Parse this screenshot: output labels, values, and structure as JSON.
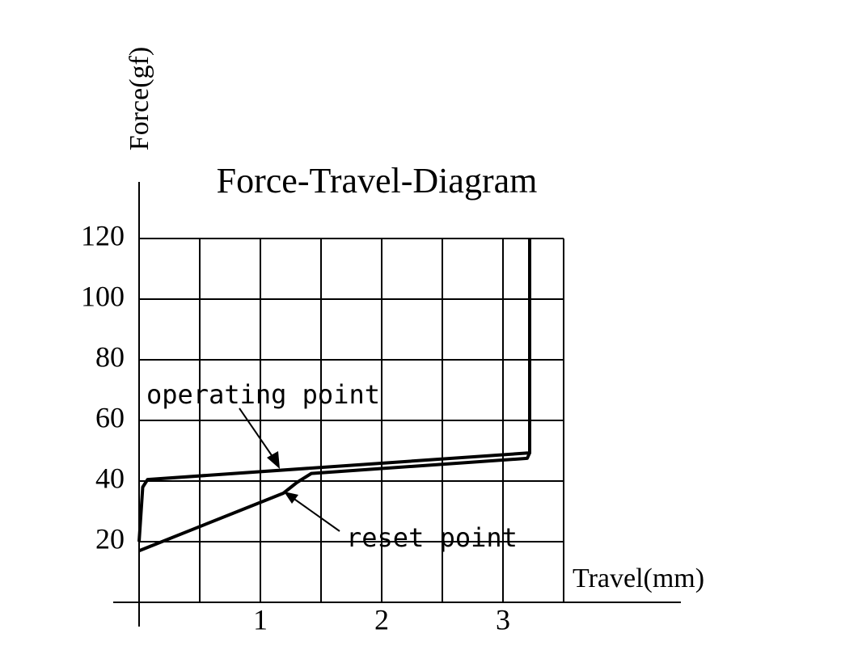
{
  "chart_data": {
    "type": "line",
    "title": "Force-Travel-Diagram",
    "x_label": "Travel(mm)",
    "y_label": "Force(gf)",
    "annotations": [
      "operating point",
      "reset point"
    ],
    "series": [
      {
        "color": "#000000",
        "x": [
          0,
          0.03,
          0.07,
          3.22,
          3.22
        ],
        "values": [
          20,
          38,
          40.5,
          49.3,
          120
        ]
      },
      {
        "color": "#000000",
        "x": [
          0,
          1.19,
          1.3,
          1.42,
          3.2,
          3.22
        ],
        "values": [
          17,
          36,
          39.5,
          42.5,
          47.5,
          49.3
        ]
      }
    ],
    "xlim": [
      0,
      3.5
    ],
    "ylim": [
      0,
      120
    ],
    "xticks": [
      1,
      2,
      3
    ],
    "yticks": [
      20,
      40,
      60,
      80,
      100,
      120
    ],
    "x_grid": [
      0.5,
      1,
      1.5,
      2,
      2.5,
      3,
      3.5
    ],
    "grid": true
  }
}
